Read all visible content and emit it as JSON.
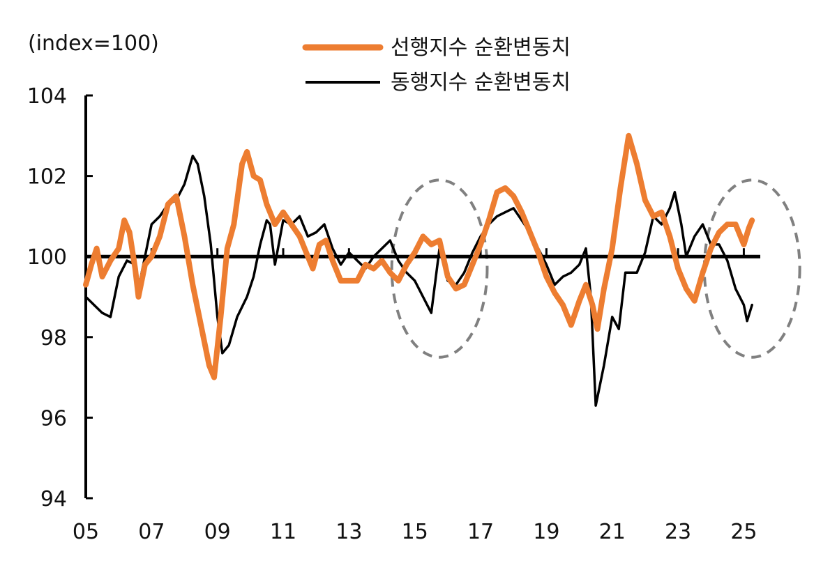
{
  "chart_data": {
    "type": "line",
    "unit_label": "(index=100)",
    "xlabel": "",
    "ylabel": "",
    "ylim": [
      94,
      104
    ],
    "y_ticks": [
      94,
      96,
      98,
      100,
      102,
      104
    ],
    "xlim": [
      2005.0,
      2025.5
    ],
    "x_ticks": [
      2005,
      2007,
      2009,
      2011,
      2013,
      2015,
      2017,
      2019,
      2021,
      2023,
      2025
    ],
    "x_tick_labels": [
      "05",
      "07",
      "09",
      "11",
      "13",
      "15",
      "17",
      "19",
      "21",
      "23",
      "25"
    ],
    "reference_line": 100,
    "grid": false,
    "legend_position": "top-center",
    "series": [
      {
        "name": "선행지수 순환변동치",
        "color": "#ED7D31",
        "points": [
          [
            2005.0,
            99.3
          ],
          [
            2005.17,
            99.8
          ],
          [
            2005.33,
            100.2
          ],
          [
            2005.5,
            99.5
          ],
          [
            2005.75,
            99.9
          ],
          [
            2006.0,
            100.2
          ],
          [
            2006.17,
            100.9
          ],
          [
            2006.33,
            100.6
          ],
          [
            2006.5,
            99.7
          ],
          [
            2006.6,
            99.0
          ],
          [
            2006.8,
            99.8
          ],
          [
            2007.0,
            100.0
          ],
          [
            2007.25,
            100.5
          ],
          [
            2007.5,
            101.3
          ],
          [
            2007.75,
            101.5
          ],
          [
            2008.0,
            100.5
          ],
          [
            2008.25,
            99.3
          ],
          [
            2008.5,
            98.3
          ],
          [
            2008.75,
            97.3
          ],
          [
            2008.9,
            97.0
          ],
          [
            2009.1,
            98.5
          ],
          [
            2009.3,
            100.2
          ],
          [
            2009.5,
            100.8
          ],
          [
            2009.75,
            102.3
          ],
          [
            2009.9,
            102.6
          ],
          [
            2010.1,
            102.0
          ],
          [
            2010.3,
            101.9
          ],
          [
            2010.5,
            101.3
          ],
          [
            2010.75,
            100.8
          ],
          [
            2011.0,
            101.1
          ],
          [
            2011.25,
            100.8
          ],
          [
            2011.5,
            100.5
          ],
          [
            2011.75,
            100.0
          ],
          [
            2011.9,
            99.7
          ],
          [
            2012.1,
            100.3
          ],
          [
            2012.3,
            100.4
          ],
          [
            2012.5,
            99.9
          ],
          [
            2012.75,
            99.4
          ],
          [
            2013.0,
            99.4
          ],
          [
            2013.25,
            99.4
          ],
          [
            2013.5,
            99.8
          ],
          [
            2013.75,
            99.7
          ],
          [
            2014.0,
            99.9
          ],
          [
            2014.25,
            99.6
          ],
          [
            2014.5,
            99.4
          ],
          [
            2014.75,
            99.8
          ],
          [
            2015.0,
            100.1
          ],
          [
            2015.25,
            100.5
          ],
          [
            2015.5,
            100.3
          ],
          [
            2015.75,
            100.4
          ],
          [
            2016.0,
            99.5
          ],
          [
            2016.25,
            99.2
          ],
          [
            2016.5,
            99.3
          ],
          [
            2016.75,
            99.8
          ],
          [
            2017.0,
            100.3
          ],
          [
            2017.25,
            100.9
          ],
          [
            2017.5,
            101.6
          ],
          [
            2017.75,
            101.7
          ],
          [
            2018.0,
            101.5
          ],
          [
            2018.25,
            101.1
          ],
          [
            2018.5,
            100.6
          ],
          [
            2018.75,
            100.1
          ],
          [
            2019.0,
            99.5
          ],
          [
            2019.25,
            99.1
          ],
          [
            2019.5,
            98.8
          ],
          [
            2019.75,
            98.3
          ],
          [
            2020.0,
            98.9
          ],
          [
            2020.2,
            99.3
          ],
          [
            2020.4,
            98.8
          ],
          [
            2020.55,
            98.2
          ],
          [
            2020.75,
            99.2
          ],
          [
            2021.0,
            100.2
          ],
          [
            2021.25,
            101.7
          ],
          [
            2021.5,
            103.0
          ],
          [
            2021.75,
            102.3
          ],
          [
            2022.0,
            101.4
          ],
          [
            2022.25,
            101.0
          ],
          [
            2022.5,
            101.1
          ],
          [
            2022.75,
            100.5
          ],
          [
            2023.0,
            99.7
          ],
          [
            2023.25,
            99.2
          ],
          [
            2023.5,
            98.9
          ],
          [
            2023.75,
            99.6
          ],
          [
            2024.0,
            100.2
          ],
          [
            2024.25,
            100.6
          ],
          [
            2024.5,
            100.8
          ],
          [
            2024.75,
            100.8
          ],
          [
            2025.0,
            100.3
          ],
          [
            2025.15,
            100.7
          ],
          [
            2025.25,
            100.9
          ]
        ]
      },
      {
        "name": "동행지수 순환변동치",
        "color": "#000000",
        "points": [
          [
            2005.0,
            99.0
          ],
          [
            2005.25,
            98.8
          ],
          [
            2005.5,
            98.6
          ],
          [
            2005.75,
            98.5
          ],
          [
            2006.0,
            99.5
          ],
          [
            2006.25,
            99.9
          ],
          [
            2006.5,
            99.8
          ],
          [
            2006.6,
            99.2
          ],
          [
            2006.75,
            99.8
          ],
          [
            2007.0,
            100.8
          ],
          [
            2007.25,
            101.0
          ],
          [
            2007.5,
            101.3
          ],
          [
            2007.75,
            101.4
          ],
          [
            2008.0,
            101.8
          ],
          [
            2008.25,
            102.5
          ],
          [
            2008.4,
            102.3
          ],
          [
            2008.6,
            101.5
          ],
          [
            2008.8,
            100.3
          ],
          [
            2009.0,
            98.5
          ],
          [
            2009.15,
            97.6
          ],
          [
            2009.35,
            97.8
          ],
          [
            2009.6,
            98.5
          ],
          [
            2009.9,
            99.0
          ],
          [
            2010.1,
            99.5
          ],
          [
            2010.3,
            100.3
          ],
          [
            2010.5,
            100.9
          ],
          [
            2010.6,
            100.8
          ],
          [
            2010.75,
            99.8
          ],
          [
            2011.0,
            100.9
          ],
          [
            2011.25,
            100.8
          ],
          [
            2011.5,
            101.0
          ],
          [
            2011.75,
            100.5
          ],
          [
            2012.0,
            100.6
          ],
          [
            2012.25,
            100.8
          ],
          [
            2012.5,
            100.2
          ],
          [
            2012.75,
            99.8
          ],
          [
            2013.0,
            100.1
          ],
          [
            2013.25,
            99.9
          ],
          [
            2013.5,
            99.7
          ],
          [
            2013.75,
            100.0
          ],
          [
            2014.0,
            100.2
          ],
          [
            2014.25,
            100.4
          ],
          [
            2014.5,
            99.9
          ],
          [
            2014.75,
            99.6
          ],
          [
            2015.0,
            99.4
          ],
          [
            2015.25,
            99.0
          ],
          [
            2015.5,
            98.6
          ],
          [
            2015.75,
            100.2
          ],
          [
            2016.0,
            99.4
          ],
          [
            2016.25,
            99.3
          ],
          [
            2016.5,
            99.6
          ],
          [
            2016.75,
            100.1
          ],
          [
            2017.0,
            100.5
          ],
          [
            2017.25,
            100.8
          ],
          [
            2017.5,
            101.0
          ],
          [
            2017.75,
            101.1
          ],
          [
            2018.0,
            101.2
          ],
          [
            2018.25,
            100.9
          ],
          [
            2018.5,
            100.6
          ],
          [
            2018.75,
            100.2
          ],
          [
            2019.0,
            99.8
          ],
          [
            2019.25,
            99.3
          ],
          [
            2019.5,
            99.5
          ],
          [
            2019.75,
            99.6
          ],
          [
            2020.0,
            99.8
          ],
          [
            2020.2,
            100.2
          ],
          [
            2020.35,
            99.0
          ],
          [
            2020.5,
            96.3
          ],
          [
            2020.75,
            97.3
          ],
          [
            2021.0,
            98.5
          ],
          [
            2021.2,
            98.2
          ],
          [
            2021.4,
            99.6
          ],
          [
            2021.75,
            99.6
          ],
          [
            2022.0,
            100.1
          ],
          [
            2022.25,
            101.0
          ],
          [
            2022.5,
            100.8
          ],
          [
            2022.75,
            101.2
          ],
          [
            2022.9,
            101.6
          ],
          [
            2023.1,
            100.8
          ],
          [
            2023.25,
            100.0
          ],
          [
            2023.5,
            100.5
          ],
          [
            2023.75,
            100.8
          ],
          [
            2024.0,
            100.3
          ],
          [
            2024.25,
            100.3
          ],
          [
            2024.5,
            99.9
          ],
          [
            2024.75,
            99.2
          ],
          [
            2025.0,
            98.8
          ],
          [
            2025.1,
            98.4
          ],
          [
            2025.25,
            98.8
          ]
        ]
      }
    ],
    "highlights": [
      {
        "center": [
          2015.75,
          99.7
        ],
        "rx_years": 1.45,
        "ry": 2.2,
        "color": "#808080"
      },
      {
        "center": [
          2025.25,
          99.7
        ],
        "rx_years": 1.45,
        "ry": 2.2,
        "color": "#808080"
      }
    ]
  }
}
